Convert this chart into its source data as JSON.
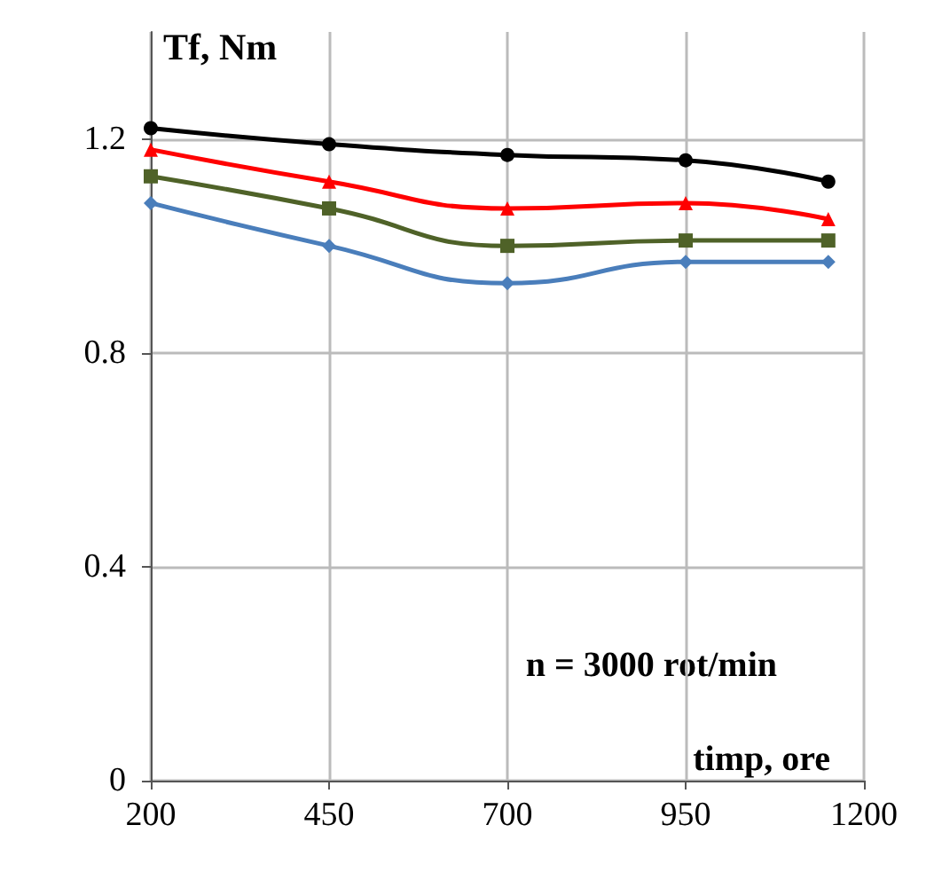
{
  "chart_data": {
    "type": "line",
    "xlabel": "timp, ore",
    "ylabel": "Tf, Nm",
    "annotations": [
      "n = 3000 rot/min"
    ],
    "x": [
      200,
      450,
      700,
      950,
      1150
    ],
    "series": [
      {
        "color": "#000000",
        "marker": "circle",
        "values": [
          1.22,
          1.19,
          1.17,
          1.16,
          1.12
        ]
      },
      {
        "color": "#ff0000",
        "marker": "triangle",
        "values": [
          1.18,
          1.12,
          1.07,
          1.08,
          1.05
        ]
      },
      {
        "color": "#4f6228",
        "marker": "square",
        "values": [
          1.13,
          1.07,
          1.0,
          1.01,
          1.01
        ]
      },
      {
        "color": "#4a7ebb",
        "marker": "diamond",
        "values": [
          1.08,
          1.0,
          0.93,
          0.97,
          0.97
        ]
      }
    ],
    "xlim": [
      200,
      1200
    ],
    "xticks": [
      200,
      450,
      700,
      950,
      1200
    ],
    "ylim": [
      0,
      1.4
    ],
    "yticks": [
      0,
      0.4,
      0.8,
      1.2
    ],
    "grid": true
  }
}
